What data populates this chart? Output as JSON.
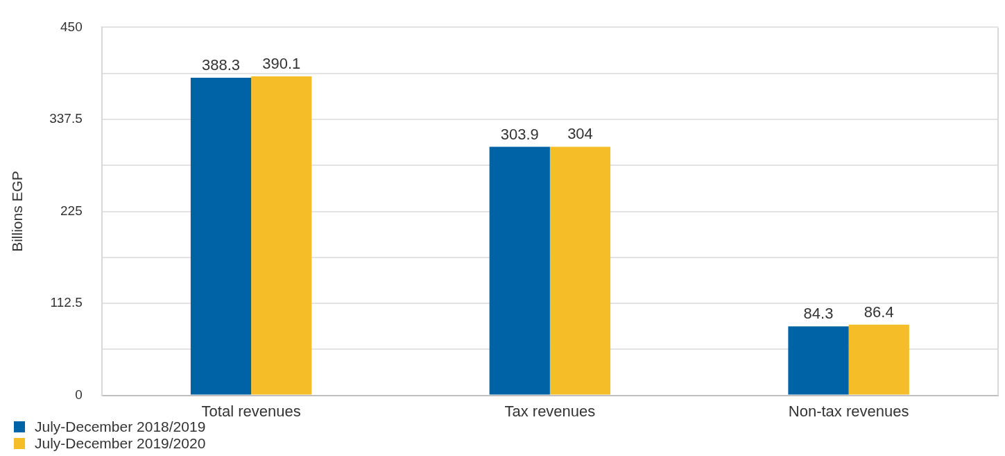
{
  "chart_data": {
    "type": "bar",
    "ylabel": "Billions EGP",
    "categories": [
      "Total revenues",
      "Tax revenues",
      "Non-tax revenues"
    ],
    "series": [
      {
        "name": "July-December 2018/2019",
        "color": "#0063a6",
        "values": [
          388.3,
          303.9,
          84.3
        ]
      },
      {
        "name": "July-December 2019/2020",
        "color": "#f5bd27",
        "values": [
          390.1,
          304,
          86.4
        ]
      }
    ],
    "ylim": [
      0,
      450
    ],
    "yticks": [
      0,
      {
        "value": 56.25,
        "label": null
      },
      112.5,
      {
        "value": 168.75,
        "label": null
      },
      225,
      {
        "value": 281.25,
        "label": null
      },
      337.5,
      {
        "value": 393.75,
        "label": null
      },
      450
    ],
    "grid": "y",
    "legend": "bottom left",
    "data_labels": true
  }
}
